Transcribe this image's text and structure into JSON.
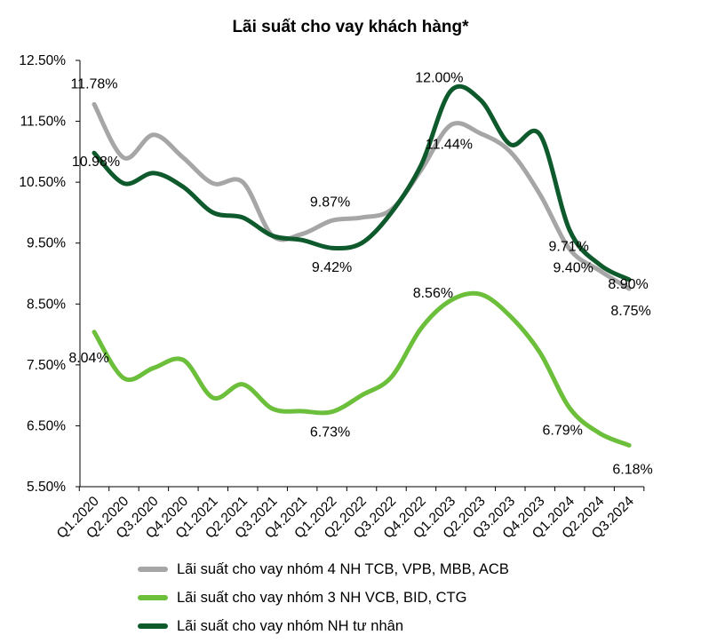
{
  "chart_data": {
    "type": "line",
    "title": "Lãi suất cho vay khách hàng*",
    "categories": [
      "Q1.2020",
      "Q2.2020",
      "Q3.2020",
      "Q4.2020",
      "Q1.2021",
      "Q2.2021",
      "Q3.2021",
      "Q4.2021",
      "Q1.2022",
      "Q2.2022",
      "Q3.2022",
      "Q4.2022",
      "Q1.2023",
      "Q2.2023",
      "Q3.2023",
      "Q4.2023",
      "Q1.2024",
      "Q2.2024",
      "Q3.2024"
    ],
    "y_ticks": [
      "5.50%",
      "6.50%",
      "7.50%",
      "8.50%",
      "9.50%",
      "10.50%",
      "11.50%",
      "12.50%"
    ],
    "ylim": [
      5.5,
      12.5
    ],
    "grid": false,
    "series": [
      {
        "name": "Lãi suất cho vay nhóm 4 NH TCB, VPB, MBB, ACB",
        "color": "#A6A6A6",
        "values": [
          11.78,
          10.9,
          11.28,
          10.9,
          10.48,
          10.5,
          9.62,
          9.65,
          9.87,
          9.92,
          10.05,
          10.7,
          11.44,
          11.3,
          11.0,
          10.3,
          9.4,
          9.05,
          8.75
        ]
      },
      {
        "name": "Lãi suất cho vay nhóm 3 NH VCB, BID, CTG",
        "color": "#6BBF3A",
        "values": [
          8.04,
          7.28,
          7.45,
          7.58,
          6.96,
          7.18,
          6.78,
          6.74,
          6.73,
          7.0,
          7.3,
          8.1,
          8.56,
          8.66,
          8.3,
          7.7,
          6.79,
          6.38,
          6.18
        ]
      },
      {
        "name": "Lãi suất cho vay nhóm NH tư nhân",
        "color": "#0E5A2C",
        "values": [
          10.98,
          10.48,
          10.65,
          10.42,
          10.0,
          9.92,
          9.62,
          9.55,
          9.42,
          9.5,
          10.0,
          10.78,
          12.0,
          11.85,
          11.12,
          11.28,
          9.71,
          9.15,
          8.9
        ]
      }
    ],
    "annotations": [
      {
        "series": 0,
        "index": 0,
        "text": "11.78%"
      },
      {
        "series": 0,
        "index": 8,
        "text": "9.87%"
      },
      {
        "series": 0,
        "index": 12,
        "text": "11.44%"
      },
      {
        "series": 0,
        "index": 16,
        "text": "9.40%"
      },
      {
        "series": 0,
        "index": 18,
        "text": "8.75%"
      },
      {
        "series": 1,
        "index": 0,
        "text": "8.04%"
      },
      {
        "series": 1,
        "index": 8,
        "text": "6.73%"
      },
      {
        "series": 1,
        "index": 12,
        "text": "8.56%"
      },
      {
        "series": 1,
        "index": 16,
        "text": "6.79%"
      },
      {
        "series": 1,
        "index": 18,
        "text": "6.18%"
      },
      {
        "series": 2,
        "index": 0,
        "text": "10.98%"
      },
      {
        "series": 2,
        "index": 8,
        "text": "9.42%"
      },
      {
        "series": 2,
        "index": 12,
        "text": "12.00%"
      },
      {
        "series": 2,
        "index": 16,
        "text": "9.71%"
      },
      {
        "series": 2,
        "index": 18,
        "text": "8.90%"
      }
    ],
    "legend_position": "bottom"
  }
}
